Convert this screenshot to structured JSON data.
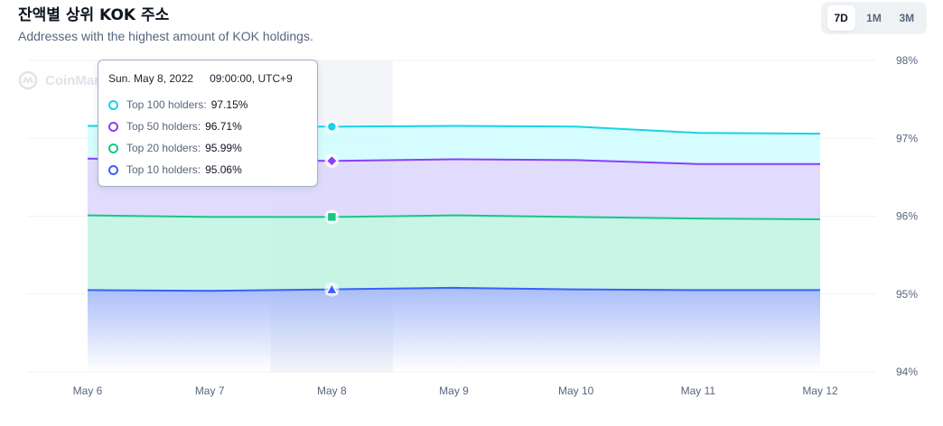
{
  "header": {
    "title": "잔액별 상위 KOK 주소",
    "subtitle": "Addresses with the highest amount of KOK holdings."
  },
  "range_tabs": [
    {
      "label": "7D",
      "active": true
    },
    {
      "label": "1M",
      "active": false
    },
    {
      "label": "3M",
      "active": false
    }
  ],
  "watermark": "CoinMarketCap",
  "tooltip": {
    "date": "Sun. May 8, 2022",
    "time": "09:00:00, UTC+9",
    "rows": [
      {
        "label": "Top 100 holders:",
        "value": "97.15%",
        "color": "#16d3e8"
      },
      {
        "label": "Top 50 holders:",
        "value": "96.71%",
        "color": "#8a3ffc"
      },
      {
        "label": "Top 20 holders:",
        "value": "95.99%",
        "color": "#16c784"
      },
      {
        "label": "Top 10 holders:",
        "value": "95.06%",
        "color": "#3861fb"
      }
    ]
  },
  "chart_data": {
    "type": "area",
    "x": [
      "May 6",
      "May 7",
      "May 8",
      "May 9",
      "May 10",
      "May 11",
      "May 12"
    ],
    "ylim": [
      94,
      98
    ],
    "yticks": [
      94,
      95,
      96,
      97,
      98
    ],
    "ytick_labels": [
      "94%",
      "95%",
      "96%",
      "97%",
      "98%"
    ],
    "y_axis_position": "right",
    "grid": true,
    "highlight_index": 2,
    "series": [
      {
        "name": "Top 100 holders",
        "color": "#16d3e8",
        "fill": "#cffdff",
        "marker": "circle",
        "values": [
          97.16,
          97.15,
          97.15,
          97.16,
          97.15,
          97.07,
          97.06
        ]
      },
      {
        "name": "Top 50 holders",
        "color": "#8a3ffc",
        "fill": "#dcd6fd",
        "marker": "diamond",
        "values": [
          96.74,
          96.72,
          96.71,
          96.73,
          96.72,
          96.67,
          96.67
        ]
      },
      {
        "name": "Top 20 holders",
        "color": "#16c784",
        "fill": "#bff3e2",
        "marker": "square",
        "values": [
          96.01,
          95.99,
          95.99,
          96.01,
          95.99,
          95.97,
          95.96
        ]
      },
      {
        "name": "Top 10 holders",
        "color": "#3861fb",
        "fill": "#a9bdf8",
        "marker": "triangle",
        "values": [
          95.05,
          95.04,
          95.06,
          95.08,
          95.06,
          95.05,
          95.05
        ]
      }
    ]
  }
}
